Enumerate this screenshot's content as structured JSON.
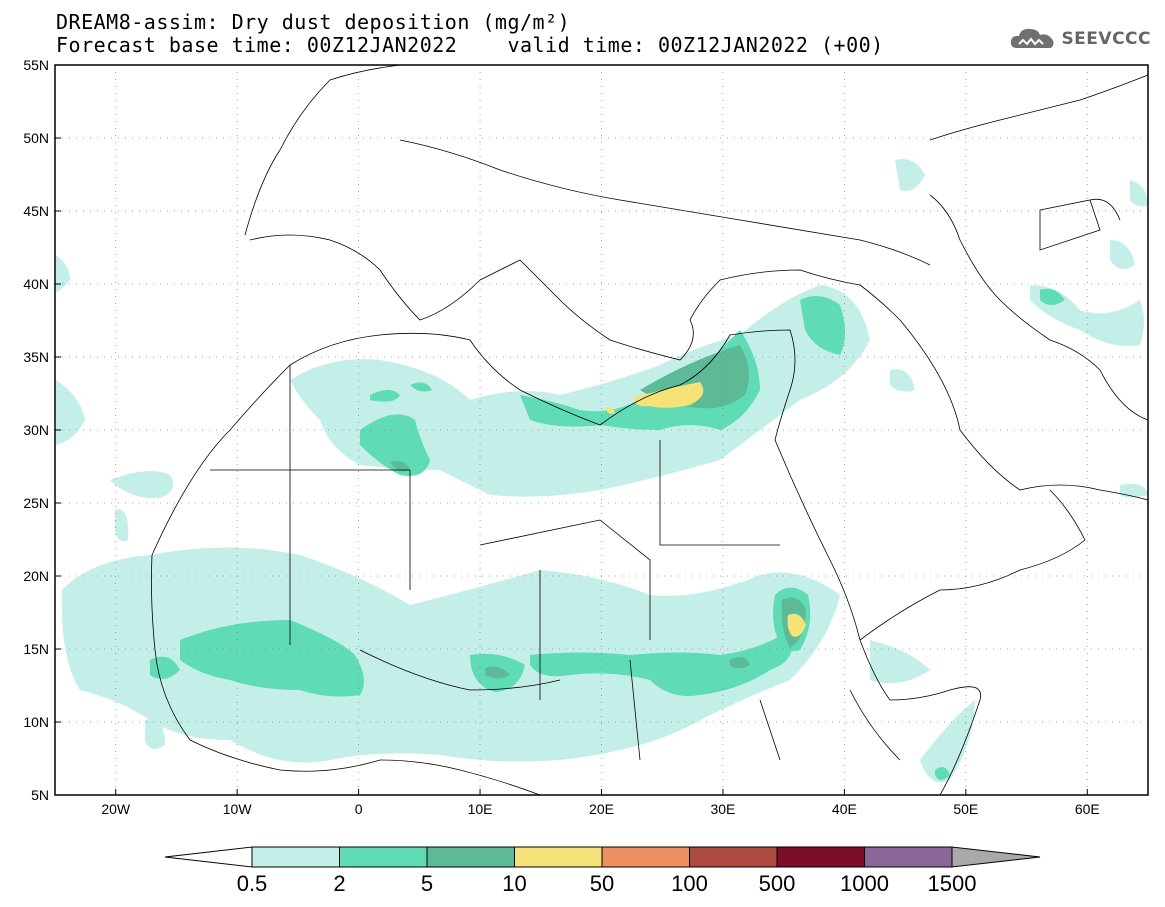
{
  "title": {
    "line1": "DREAM8-assim: Dry dust deposition (mg/m²)",
    "line2": "Forecast base time: 00Z12JAN2022    valid time: 00Z12JAN2022 (+00)"
  },
  "logo": {
    "text": "SEEVCCC",
    "icon": "cloud-logo-icon"
  },
  "map": {
    "lon_range": [
      -25,
      65
    ],
    "lat_range": [
      5,
      55
    ],
    "lat_ticks": [
      "5N",
      "10N",
      "15N",
      "20N",
      "25N",
      "30N",
      "35N",
      "40N",
      "45N",
      "50N",
      "55N"
    ],
    "lon_ticks": [
      "20W",
      "10W",
      "0",
      "10E",
      "20E",
      "30E",
      "40E",
      "50E",
      "60E"
    ],
    "grid": "dotted",
    "boundaries": "countries"
  },
  "colorbar": {
    "labels": [
      "0.5",
      "2",
      "5",
      "10",
      "50",
      "100",
      "500",
      "1000",
      "1500"
    ],
    "colors": [
      "#c4efe9",
      "#5fdcb5",
      "#5cbb96",
      "#f5e37a",
      "#ec8f63",
      "#ad4b3e",
      "#7b0d26",
      "#8c679a"
    ],
    "over_color": "#a9a9a9",
    "under_color": "#ffffff"
  },
  "colors": {
    "land_fill": "#ffffff",
    "border_line": "#000000"
  }
}
